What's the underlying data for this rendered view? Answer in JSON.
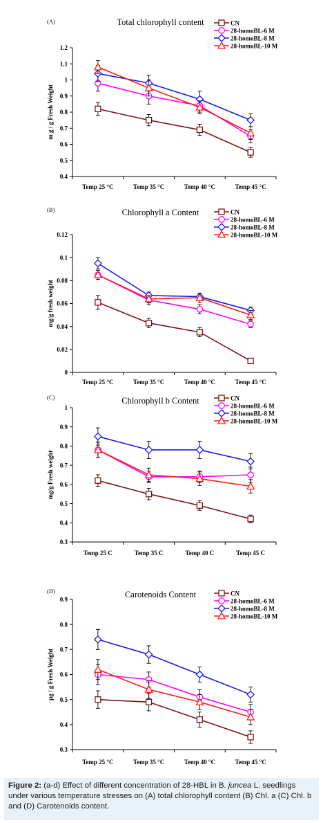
{
  "colors": {
    "CN": "#7b1313",
    "BL6": "#ff00ff",
    "BL8": "#1a1ae6",
    "BL10": "#ff1a1a"
  },
  "caption": {
    "label": "Figure 2:",
    "part1": " (a-d) Effect of different concentration of 28-HBL in B. ",
    "species": "juncea",
    "part2": " L. seedlings under various temperature stresses on (A) total chlorophyll content (B) Chl. a (C) Chl. b and (D) Carotenoids content."
  },
  "chart_data": [
    {
      "panel": "(A)",
      "type": "line",
      "title": "Total chlorophyll content",
      "ylabel": "m g / g Fresh Weight",
      "xlabel": "",
      "categories": [
        "Temp 25 °C",
        "Temp 35 °C",
        "Temp 40 °C",
        "Temp 45 °C"
      ],
      "ylim": [
        0.4,
        1.2
      ],
      "yticks": [
        "0.4",
        "0.5",
        "0.6",
        "0.7",
        "0.8",
        "0.9",
        "1",
        "1.1",
        "1.2"
      ],
      "series": [
        {
          "name": "CN",
          "key": "CN",
          "marker": "square",
          "values": [
            0.82,
            0.75,
            0.69,
            0.55
          ],
          "errors": [
            0.04,
            0.035,
            0.035,
            0.03
          ]
        },
        {
          "name": "28-homoBL-6 M",
          "key": "BL6",
          "marker": "circle",
          "values": [
            0.98,
            0.9,
            0.84,
            0.65
          ],
          "errors": [
            0.05,
            0.05,
            0.04,
            0.04
          ]
        },
        {
          "name": "28-homoBL-8 M",
          "key": "BL8",
          "marker": "diamond",
          "values": [
            1.04,
            0.98,
            0.88,
            0.75
          ],
          "errors": [
            0.05,
            0.05,
            0.05,
            0.04
          ]
        },
        {
          "name": "28-homoBL-10 M",
          "key": "BL10",
          "marker": "triangle",
          "values": [
            1.08,
            0.95,
            0.83,
            0.67
          ],
          "errors": [
            0.04,
            0.05,
            0.04,
            0.04
          ]
        }
      ]
    },
    {
      "panel": "(B)",
      "type": "line",
      "title": "Chlorophyll a Content",
      "ylabel": "mg/g fresh weight",
      "xlabel": "",
      "categories": [
        "Temp 25 °C",
        "Temp 35 °C",
        "Temp 40 °C",
        "Temp 45 °C"
      ],
      "ylim": [
        0,
        0.12
      ],
      "yticks": [
        "0",
        "0.02",
        "0.04",
        "0.06",
        "0.08",
        "0.1",
        "0.12"
      ],
      "series": [
        {
          "name": "CN",
          "key": "CN",
          "marker": "square",
          "values": [
            0.061,
            0.043,
            0.035,
            0.01
          ],
          "errors": [
            0.006,
            0.004,
            0.004,
            0.001
          ]
        },
        {
          "name": "28-homoBL-6 M",
          "key": "BL6",
          "marker": "circle",
          "values": [
            0.085,
            0.063,
            0.055,
            0.042
          ],
          "errors": [
            0.004,
            0.004,
            0.004,
            0.003
          ]
        },
        {
          "name": "28-homoBL-8 M",
          "key": "BL8",
          "marker": "diamond",
          "values": [
            0.095,
            0.067,
            0.066,
            0.054
          ],
          "errors": [
            0.005,
            0.003,
            0.003,
            0.003
          ]
        },
        {
          "name": "28-homoBL-10 M",
          "key": "BL10",
          "marker": "triangle",
          "values": [
            0.085,
            0.064,
            0.065,
            0.05
          ],
          "errors": [
            0.004,
            0.003,
            0.004,
            0.004
          ]
        }
      ]
    },
    {
      "panel": "(C)",
      "type": "line",
      "title": "Chlorophyll b Content",
      "ylabel": "mg/g Fresh weight",
      "xlabel": "",
      "categories": [
        "Temp 25 C",
        "Temp 35 C",
        "Temp 40 C",
        "Temp 45 C"
      ],
      "ylim": [
        0.3,
        1
      ],
      "yticks": [
        "0.3",
        "0.4",
        "0.5",
        "0.6",
        "0.7",
        "0.8",
        "0.9",
        "1"
      ],
      "series": [
        {
          "name": "CN",
          "key": "CN",
          "marker": "square",
          "values": [
            0.62,
            0.55,
            0.49,
            0.42
          ],
          "errors": [
            0.03,
            0.03,
            0.025,
            0.02
          ]
        },
        {
          "name": "28-homoBL-6 M",
          "key": "BL6",
          "marker": "circle",
          "values": [
            0.78,
            0.64,
            0.64,
            0.65
          ],
          "errors": [
            0.04,
            0.03,
            0.03,
            0.04
          ]
        },
        {
          "name": "28-homoBL-8 M",
          "key": "BL8",
          "marker": "diamond",
          "values": [
            0.85,
            0.78,
            0.78,
            0.72
          ],
          "errors": [
            0.045,
            0.045,
            0.045,
            0.04
          ]
        },
        {
          "name": "28-homoBL-10 M",
          "key": "BL10",
          "marker": "triangle",
          "values": [
            0.78,
            0.65,
            0.63,
            0.59
          ],
          "errors": [
            0.04,
            0.035,
            0.035,
            0.035
          ]
        }
      ]
    },
    {
      "panel": "(D)",
      "type": "line",
      "title": "Carotenoids Content",
      "ylabel": "μg / g Fresh Weight",
      "xlabel": "",
      "categories": [
        "Temp 25 °C",
        "Temp 35 °C",
        "Temp 40 °C",
        "Temp 45 °C"
      ],
      "ylim": [
        0.3,
        0.9
      ],
      "yticks": [
        "0.3",
        "0.4",
        "0.5",
        "0.6",
        "0.7",
        "0.8",
        "0.9"
      ],
      "series": [
        {
          "name": "CN",
          "key": "CN",
          "marker": "square",
          "values": [
            0.5,
            0.49,
            0.42,
            0.35
          ],
          "errors": [
            0.035,
            0.035,
            0.03,
            0.025
          ]
        },
        {
          "name": "28-homoBL-6 M",
          "key": "BL6",
          "marker": "circle",
          "values": [
            0.6,
            0.58,
            0.51,
            0.45
          ],
          "errors": [
            0.04,
            0.03,
            0.03,
            0.03
          ]
        },
        {
          "name": "28-homoBL-8 M",
          "key": "BL8",
          "marker": "diamond",
          "values": [
            0.74,
            0.68,
            0.6,
            0.52
          ],
          "errors": [
            0.04,
            0.035,
            0.03,
            0.03
          ]
        },
        {
          "name": "28-homoBL-10 M",
          "key": "BL10",
          "marker": "triangle",
          "values": [
            0.62,
            0.54,
            0.49,
            0.43
          ],
          "errors": [
            0.04,
            0.035,
            0.03,
            0.03
          ]
        }
      ]
    }
  ]
}
